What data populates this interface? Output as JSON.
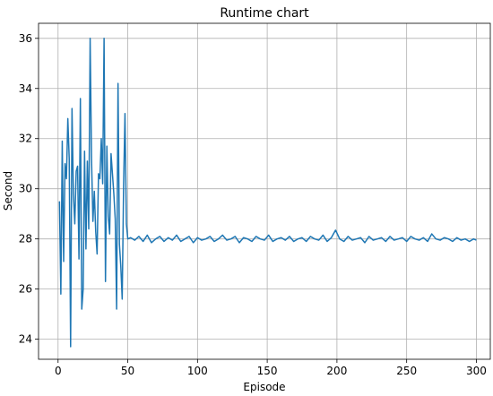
{
  "chart_data": {
    "type": "line",
    "title": "Runtime chart",
    "xlabel": "Episode",
    "ylabel": "Second",
    "xlim": [
      -14,
      310
    ],
    "ylim": [
      23.2,
      36.6
    ],
    "xticks": [
      0,
      50,
      100,
      150,
      200,
      250,
      300
    ],
    "yticks": [
      24,
      26,
      28,
      30,
      32,
      34,
      36
    ],
    "grid": true,
    "line_color": "#1f77b4",
    "series": [
      {
        "x": [
          1,
          2,
          3,
          4,
          5,
          6,
          7,
          8,
          9,
          10,
          11,
          12,
          13,
          14,
          15,
          16,
          17,
          18,
          19,
          20,
          21,
          22,
          23,
          24,
          25,
          26,
          27,
          28,
          29,
          30,
          31,
          32,
          33,
          34,
          35,
          36,
          37,
          38,
          39,
          40,
          41,
          42,
          43,
          44,
          45,
          46,
          47,
          48,
          49,
          50,
          52,
          55,
          58,
          61,
          64,
          67,
          70,
          73,
          76,
          79,
          82,
          85,
          88,
          91,
          94,
          97,
          100,
          103,
          106,
          109,
          112,
          115,
          118,
          121,
          124,
          127,
          130,
          133,
          136,
          139,
          142,
          145,
          148,
          151,
          154,
          157,
          160,
          163,
          166,
          169,
          172,
          175,
          178,
          181,
          184,
          187,
          190,
          193,
          196,
          199,
          202,
          205,
          208,
          211,
          214,
          217,
          220,
          223,
          226,
          229,
          232,
          235,
          238,
          241,
          244,
          247,
          250,
          253,
          256,
          259,
          262,
          265,
          268,
          271,
          274,
          277,
          280,
          283,
          286,
          289,
          292,
          295,
          298,
          300
        ],
        "values": [
          29.5,
          25.8,
          31.9,
          27.1,
          31.0,
          30.4,
          32.8,
          31.2,
          23.7,
          33.2,
          29.8,
          28.6,
          30.7,
          30.9,
          27.2,
          33.6,
          25.2,
          26.0,
          31.5,
          27.6,
          31.1,
          28.4,
          36.0,
          31.2,
          28.7,
          29.9,
          28.3,
          27.4,
          30.6,
          30.4,
          32.0,
          30.2,
          36.0,
          26.3,
          31.7,
          28.9,
          28.2,
          31.4,
          30.6,
          29.8,
          28.8,
          25.2,
          34.2,
          27.8,
          26.9,
          25.6,
          30.1,
          33.0,
          28.6,
          28.0,
          28.05,
          27.95,
          28.1,
          27.9,
          28.15,
          27.85,
          28.0,
          28.1,
          27.9,
          28.05,
          27.95,
          28.15,
          27.9,
          28.0,
          28.1,
          27.85,
          28.05,
          27.95,
          28.0,
          28.1,
          27.9,
          28.0,
          28.15,
          27.95,
          28.0,
          28.1,
          27.85,
          28.05,
          28.0,
          27.9,
          28.1,
          28.0,
          27.95,
          28.15,
          27.9,
          28.0,
          28.05,
          27.95,
          28.1,
          27.9,
          28.0,
          28.05,
          27.9,
          28.1,
          28.0,
          27.95,
          28.15,
          27.9,
          28.05,
          28.35,
          28.0,
          27.9,
          28.1,
          27.95,
          28.0,
          28.05,
          27.85,
          28.1,
          27.95,
          28.0,
          28.05,
          27.9,
          28.1,
          27.95,
          28.0,
          28.05,
          27.9,
          28.1,
          28.0,
          27.95,
          28.05,
          27.9,
          28.2,
          28.0,
          27.95,
          28.05,
          28.0,
          27.9,
          28.05,
          27.95,
          28.0,
          27.9,
          28.0,
          27.95
        ]
      }
    ]
  }
}
